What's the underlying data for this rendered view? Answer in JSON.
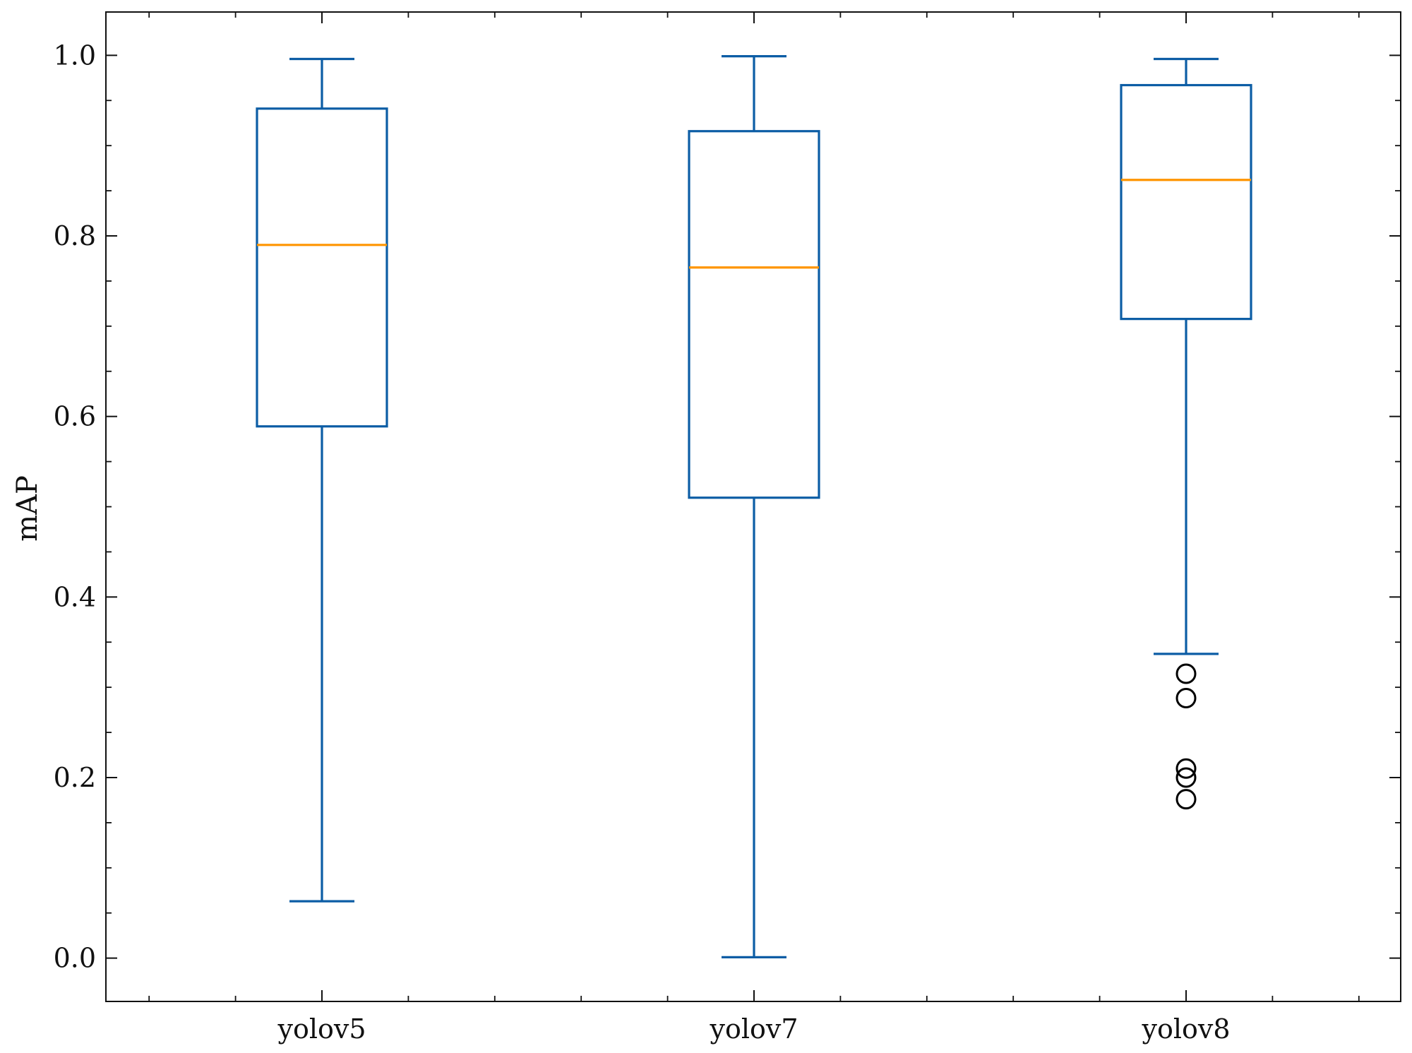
{
  "chart_data": {
    "type": "box",
    "title": "",
    "xlabel": "",
    "ylabel": "mAP",
    "ylim": [
      -0.048,
      1.048
    ],
    "yticks": [
      0.0,
      0.2,
      0.4,
      0.6,
      0.8,
      1.0
    ],
    "ytick_labels": [
      "0.0",
      "0.2",
      "0.4",
      "0.6",
      "0.8",
      "1.0"
    ],
    "yminor_step": 0.05,
    "categories": [
      "yolov5",
      "yolov7",
      "yolov8"
    ],
    "boxes": [
      {
        "name": "yolov5",
        "whisker_low": 0.063,
        "q1": 0.589,
        "median": 0.79,
        "q3": 0.941,
        "whisker_high": 0.996,
        "outliers": []
      },
      {
        "name": "yolov7",
        "whisker_low": 0.001,
        "q1": 0.51,
        "median": 0.765,
        "q3": 0.916,
        "whisker_high": 0.999,
        "outliers": []
      },
      {
        "name": "yolov8",
        "whisker_low": 0.337,
        "q1": 0.708,
        "median": 0.862,
        "q3": 0.967,
        "whisker_high": 0.996,
        "outliers": [
          0.315,
          0.288,
          0.21,
          0.2,
          0.176
        ]
      }
    ],
    "colors": {
      "box": "#0C5DA5",
      "median": "#FF9500",
      "outlier": "#000000",
      "axis": "#111111"
    },
    "grid": false,
    "legend": "none"
  }
}
